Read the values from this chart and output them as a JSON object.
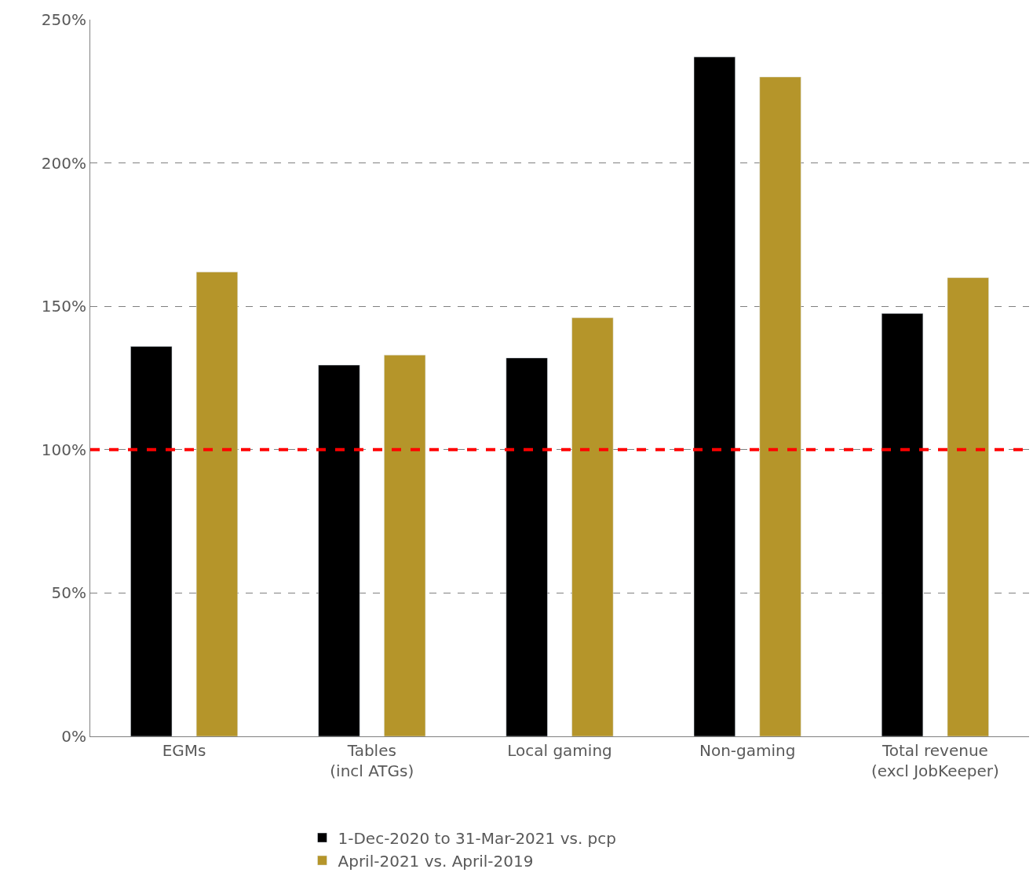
{
  "chart_data": {
    "type": "bar",
    "categories": [
      "EGMs",
      "Tables\n(incl ATGs)",
      "Local gaming",
      "Non-gaming",
      "Total revenue\n(excl JobKeeper)"
    ],
    "series": [
      {
        "name": "1-Dec-2020 to 31-Mar-2021 vs. pcp",
        "color": "#000000",
        "values": [
          136,
          129.5,
          132,
          237,
          147.5
        ]
      },
      {
        "name": "April-2021 vs. April-2019",
        "color": "#b5952a",
        "values": [
          162,
          133,
          146,
          230,
          160
        ]
      }
    ],
    "ylim": [
      0,
      250
    ],
    "yticks": [
      {
        "value": 0,
        "label": "0%"
      },
      {
        "value": 50,
        "label": "50%"
      },
      {
        "value": 100,
        "label": "100%"
      },
      {
        "value": 150,
        "label": "150%"
      },
      {
        "value": 200,
        "label": "200%"
      },
      {
        "value": 250,
        "label": "250%"
      }
    ],
    "grid": "y",
    "legend": "bottom",
    "ref_lines": [
      {
        "axis": "y",
        "value": 100,
        "color": "#ff0000",
        "line_style": "dashed"
      }
    ]
  }
}
